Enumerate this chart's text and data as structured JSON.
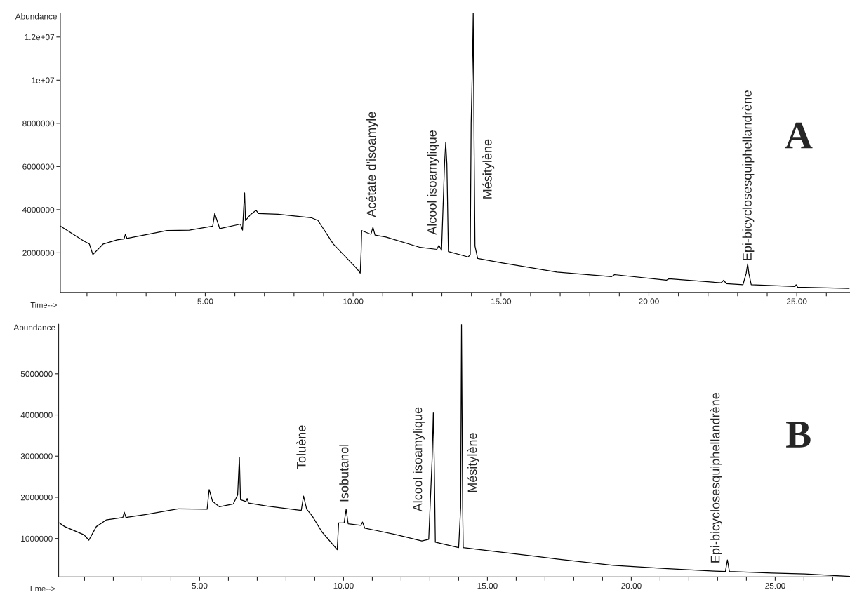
{
  "chart_data": [
    {
      "type": "line",
      "xlabel": "Time-->",
      "ylabel": "Abundance",
      "xlim": [
        0.1,
        26.8
      ],
      "ylim": [
        170000,
        13100000
      ],
      "xticks": [
        {
          "value": 1,
          "label": null
        },
        {
          "value": 2,
          "label": null
        },
        {
          "value": 3,
          "label": null
        },
        {
          "value": 4,
          "label": null
        },
        {
          "value": 5,
          "label": "5.00"
        },
        {
          "value": 6,
          "label": null
        },
        {
          "value": 7,
          "label": null
        },
        {
          "value": 8,
          "label": null
        },
        {
          "value": 9,
          "label": null
        },
        {
          "value": 10,
          "label": "10.00"
        },
        {
          "value": 11,
          "label": null
        },
        {
          "value": 12,
          "label": null
        },
        {
          "value": 13,
          "label": null
        },
        {
          "value": 14,
          "label": null
        },
        {
          "value": 15,
          "label": "15.00"
        },
        {
          "value": 16,
          "label": null
        },
        {
          "value": 17,
          "label": null
        },
        {
          "value": 18,
          "label": null
        },
        {
          "value": 19,
          "label": null
        },
        {
          "value": 20,
          "label": "20.00"
        },
        {
          "value": 21,
          "label": null
        },
        {
          "value": 22,
          "label": null
        },
        {
          "value": 23,
          "label": null
        },
        {
          "value": 24,
          "label": null
        },
        {
          "value": 25,
          "label": "25.00"
        },
        {
          "value": 26,
          "label": null
        }
      ],
      "yticks": [
        2000000,
        4000000,
        6000000,
        8000000,
        {
          "value": 10000000,
          "label": "1e+07"
        },
        {
          "value": 12000000,
          "label": "1.2e+07"
        }
      ],
      "series": [
        {
          "color": "#000000",
          "x": [
            0.1,
            0.9,
            1.08,
            1.2,
            1.55,
            2.02,
            2.25,
            2.3,
            2.35,
            3.71,
            4.46,
            5.25,
            5.32,
            5.49,
            6.19,
            6.26,
            6.3,
            6.33,
            6.36,
            6.52,
            6.72,
            6.8,
            7.46,
            8.58,
            8.81,
            9.33,
            10.13,
            10.24,
            10.27,
            10.29,
            10.6,
            10.67,
            10.74,
            11.11,
            12.27,
            12.83,
            12.9,
            12.99,
            13.09,
            13.13,
            13.17,
            13.22,
            13.89,
            13.96,
            13.99,
            14.04,
            14.06,
            14.09,
            14.12,
            14.21,
            15.05,
            16.89,
            18.74,
            18.84,
            20.59,
            20.68,
            22.44,
            22.53,
            22.62,
            23.18,
            23.29,
            23.34,
            23.38,
            23.46,
            24.94,
            24.98,
            25.03,
            26.77
          ],
          "values": [
            3240000,
            2540000,
            2410000,
            1920000,
            2410000,
            2600000,
            2640000,
            2860000,
            2670000,
            3030000,
            3050000,
            3240000,
            3820000,
            3120000,
            3330000,
            3050000,
            4100000,
            4780000,
            3500000,
            3760000,
            3970000,
            3820000,
            3790000,
            3630000,
            3500000,
            2410000,
            1260000,
            1060000,
            2030000,
            3030000,
            2860000,
            3180000,
            2820000,
            2730000,
            2250000,
            2160000,
            2350000,
            2120000,
            6110000,
            7120000,
            6110000,
            2060000,
            1810000,
            1930000,
            8000000,
            11160000,
            13100000,
            6990000,
            2310000,
            1740000,
            1530000,
            1110000,
            900000,
            990000,
            730000,
            800000,
            610000,
            730000,
            570000,
            520000,
            1050000,
            1490000,
            1050000,
            520000,
            440000,
            520000,
            410000,
            350000
          ]
        }
      ],
      "annotations": [
        "Acétate d'isoamyle",
        "Alcool isoamylique",
        "Mésitylène",
        "Epi-bicyclosesquiphellandrène",
        "A"
      ]
    },
    {
      "type": "line",
      "xlabel": "Time-->",
      "ylabel": "Abundance",
      "xlim": [
        0.1,
        27.6
      ],
      "ylim": [
        70000,
        6200000
      ],
      "xticks": [
        {
          "value": 1,
          "label": null
        },
        {
          "value": 2,
          "label": null
        },
        {
          "value": 3,
          "label": null
        },
        {
          "value": 4,
          "label": null
        },
        {
          "value": 5,
          "label": "5.00"
        },
        {
          "value": 6,
          "label": null
        },
        {
          "value": 7,
          "label": null
        },
        {
          "value": 8,
          "label": null
        },
        {
          "value": 9,
          "label": null
        },
        {
          "value": 10,
          "label": "10.00"
        },
        {
          "value": 11,
          "label": null
        },
        {
          "value": 12,
          "label": null
        },
        {
          "value": 13,
          "label": null
        },
        {
          "value": 14,
          "label": null
        },
        {
          "value": 15,
          "label": "15.00"
        },
        {
          "value": 16,
          "label": null
        },
        {
          "value": 17,
          "label": null
        },
        {
          "value": 18,
          "label": null
        },
        {
          "value": 19,
          "label": null
        },
        {
          "value": 20,
          "label": "20.00"
        },
        {
          "value": 21,
          "label": null
        },
        {
          "value": 22,
          "label": null
        },
        {
          "value": 23,
          "label": null
        },
        {
          "value": 24,
          "label": null
        },
        {
          "value": 25,
          "label": "25.00"
        },
        {
          "value": 26,
          "label": null
        },
        {
          "value": 27,
          "label": null
        }
      ],
      "yticks": [
        1000000,
        2000000,
        3000000,
        4000000,
        5000000
      ],
      "series": [
        {
          "color": "#000000",
          "x": [
            0.12,
            0.31,
            0.98,
            1.15,
            1.41,
            1.75,
            2.13,
            2.33,
            2.38,
            2.44,
            3.1,
            4.25,
            5.26,
            5.33,
            5.45,
            5.69,
            6.17,
            6.32,
            6.38,
            6.42,
            6.61,
            6.65,
            6.7,
            7.33,
            8.53,
            8.61,
            8.72,
            8.91,
            9.25,
            9.78,
            9.83,
            10.02,
            10.09,
            10.16,
            10.6,
            10.66,
            10.74,
            11.17,
            11.85,
            12.72,
            12.96,
            13.08,
            13.12,
            13.15,
            13.19,
            14.0,
            14.07,
            14.09,
            14.1,
            14.14,
            14.16,
            15.57,
            17.47,
            19.37,
            21.27,
            22.89,
            23.27,
            23.34,
            23.41,
            24.89,
            26.03,
            27.6
          ],
          "values": [
            1380000,
            1290000,
            1090000,
            960000,
            1290000,
            1450000,
            1490000,
            1510000,
            1640000,
            1510000,
            1580000,
            1720000,
            1710000,
            2190000,
            1900000,
            1770000,
            1840000,
            2060000,
            2970000,
            1940000,
            1900000,
            1970000,
            1860000,
            1790000,
            1680000,
            2030000,
            1710000,
            1550000,
            1160000,
            730000,
            1380000,
            1380000,
            1710000,
            1360000,
            1320000,
            1400000,
            1250000,
            1190000,
            1090000,
            940000,
            980000,
            2960000,
            4050000,
            2960000,
            910000,
            780000,
            1750000,
            4820000,
            6200000,
            1750000,
            780000,
            660000,
            500000,
            350000,
            270000,
            210000,
            200000,
            480000,
            200000,
            160000,
            140000,
            80000
          ]
        }
      ],
      "annotations": [
        "Toluène",
        "Isobutanol",
        "Alcool isoamylique",
        "Mésitylène",
        "Epi-bicyclosesquiphellandrène",
        "B"
      ]
    }
  ]
}
